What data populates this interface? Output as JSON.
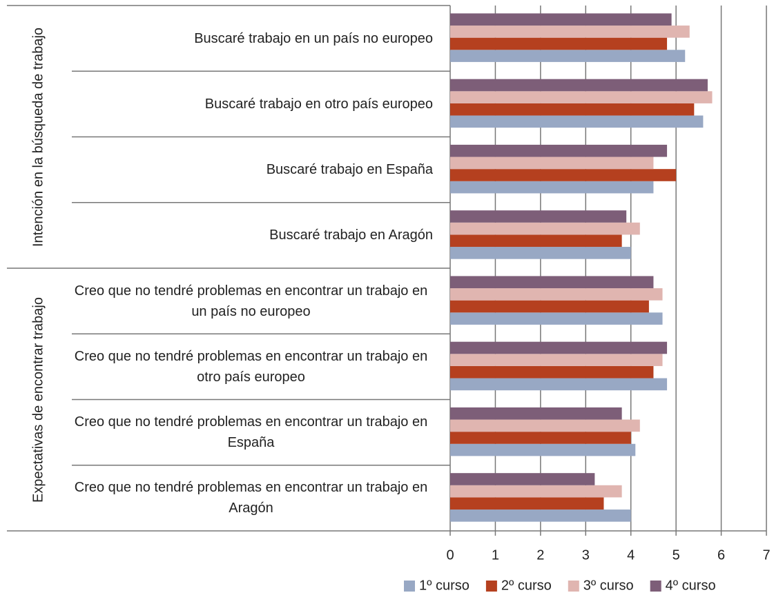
{
  "chart_data": {
    "type": "bar",
    "orientation": "horizontal",
    "groups": [
      {
        "label": "Intención en la búsqueda de trabajo",
        "size": 4
      },
      {
        "label": "Expectativas de encontrar trabajo",
        "size": 4
      }
    ],
    "categories": [
      "Buscaré trabajo en un país no europeo",
      "Buscaré trabajo en otro país europeo",
      "Buscaré trabajo en España",
      "Buscaré trabajo en Aragón",
      "Creo que no tendré problemas en encontrar un trabajo en un país no europeo",
      "Creo que no tendré problemas en encontrar un trabajo en otro país europeo",
      "Creo que no tendré problemas en encontrar un trabajo en España",
      "Creo que no tendré problemas en encontrar un trabajo en Aragón"
    ],
    "series": [
      {
        "name": "1º curso",
        "color": "#98a8c4",
        "values": [
          5.2,
          5.6,
          4.5,
          4.0,
          4.7,
          4.8,
          4.1,
          4.0
        ]
      },
      {
        "name": "2º curso",
        "color": "#b5401f",
        "values": [
          4.8,
          5.4,
          5.0,
          3.8,
          4.4,
          4.5,
          4.0,
          3.4
        ]
      },
      {
        "name": "3º curso",
        "color": "#e0b5b0",
        "values": [
          5.3,
          5.8,
          4.5,
          4.2,
          4.7,
          4.7,
          4.2,
          3.8
        ]
      },
      {
        "name": "4º curso",
        "color": "#7d5e78",
        "values": [
          4.9,
          5.7,
          4.8,
          3.9,
          4.5,
          4.8,
          3.8,
          3.2
        ]
      }
    ],
    "xlim": [
      0,
      7
    ],
    "xticks": [
      0,
      1,
      2,
      3,
      4,
      5,
      6,
      7
    ],
    "grid": true,
    "legend": "bottom"
  }
}
